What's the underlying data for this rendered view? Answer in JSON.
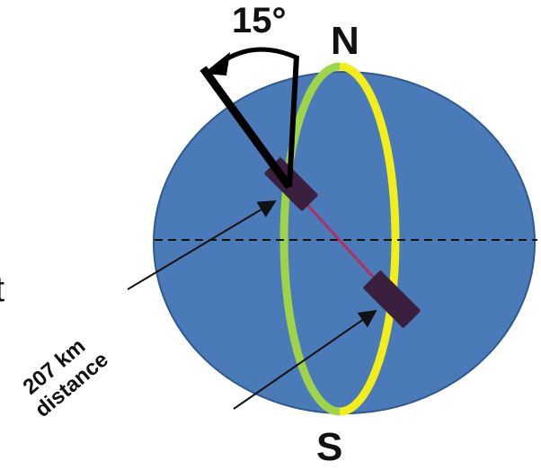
{
  "diagram": {
    "angle_label": "15°",
    "north_label": "N",
    "south_label": "S",
    "distance_line1": "207 km",
    "distance_line2": "distance",
    "edge_glyph": "t",
    "angle_degrees": 15,
    "colors": {
      "globe": "#4a7ab8",
      "globe_edge": "#2e5a90",
      "ring_front": "#f2ee1c",
      "ring_back": "#9fd34a",
      "satellite": "#3b1f3e",
      "baseline": "#b03060",
      "needle": "#000000",
      "equator": "#111111"
    },
    "icons": [
      "globe-shape",
      "orbit-ring",
      "satellite-icon",
      "north-needle",
      "angle-arc-arrow"
    ]
  }
}
